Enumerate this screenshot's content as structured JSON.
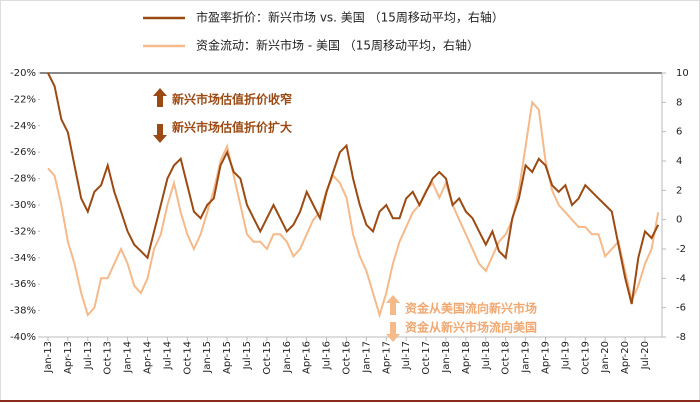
{
  "chart_data": {
    "type": "line",
    "annotations": [
      "新兴市场估值折价收窄",
      "新兴市场估值折价扩大",
      "资金从美国流向新兴市场",
      "资金从新兴市场流向美国"
    ],
    "categories": [
      "Jan-13",
      null,
      null,
      "Apr-13",
      null,
      null,
      "Jul-13",
      null,
      null,
      "Oct-13",
      null,
      null,
      "Jan-14",
      null,
      null,
      "Apr-14",
      null,
      null,
      "Jul-14",
      null,
      null,
      "Oct-14",
      null,
      null,
      "Jan-15",
      null,
      null,
      "Apr-15",
      null,
      null,
      "Jul-15",
      null,
      null,
      "Oct-15",
      null,
      null,
      "Jan-16",
      null,
      null,
      "Apr-16",
      null,
      null,
      "Jul-16",
      null,
      null,
      "Oct-16",
      null,
      null,
      "Jan-17",
      null,
      null,
      "Apr-17",
      null,
      null,
      "Jul-17",
      null,
      null,
      "Oct-17",
      null,
      null,
      "Jan-18",
      null,
      null,
      "Apr-18",
      null,
      null,
      "Jul-18",
      null,
      null,
      "Oct-18",
      null,
      null,
      "Jan-19",
      null,
      null,
      "Apr-19",
      null,
      null,
      "Jul-19",
      null,
      null,
      "Oct-19",
      null,
      null,
      "Jan-20",
      null,
      null,
      "Apr-20",
      null,
      null,
      "Jul-20",
      null,
      null
    ],
    "series": [
      {
        "name": "市盈率折价：新兴市场 vs. 美国 （15周移动平均，右轴）",
        "color": "#9c4a14",
        "axis": "y",
        "values": [
          -20,
          -21,
          -23.5,
          -24.5,
          -27,
          -29.5,
          -30.5,
          -29,
          -28.5,
          -27,
          -29,
          -30.5,
          -32,
          -33,
          -33.5,
          -34,
          -32,
          -30,
          -28,
          -27,
          -26.5,
          -28.5,
          -30.5,
          -31,
          -30,
          -29.5,
          -27,
          -26,
          -27.5,
          -28,
          -30,
          -31,
          -32,
          -31,
          -30,
          -31,
          -32,
          -31.5,
          -30.5,
          -29,
          -30,
          -31,
          -29,
          -27.5,
          -26,
          -25.5,
          -28,
          -30,
          -31.5,
          -32,
          -30.5,
          -30,
          -31,
          -31,
          -29.5,
          -29,
          -30,
          -29,
          -28,
          -27.5,
          -28,
          -30,
          -29.5,
          -30.5,
          -31,
          -32,
          -33,
          -32,
          -33.5,
          -34,
          -31,
          -29.5,
          -27,
          -27.5,
          -26.5,
          -27,
          -28.5,
          -29,
          -28.5,
          -30,
          -29.5,
          -28.5,
          -29,
          -29.5,
          -30,
          -30.5,
          -33,
          -35.5,
          -37.5,
          -34,
          -32,
          -32.5,
          -31.5
        ]
      },
      {
        "name": "资金流动：新兴市场 - 美国 （15周移动平均，右轴）",
        "color": "#f6b98a",
        "axis": "y2",
        "values": [
          3.5,
          3,
          1,
          -1.5,
          -3,
          -5,
          -6.5,
          -6,
          -4,
          -4,
          -3,
          -2,
          -3,
          -4.5,
          -5,
          -4,
          -2,
          -1,
          1,
          2.5,
          0.5,
          -1,
          -2,
          -1,
          0.5,
          2,
          4,
          5,
          3,
          1,
          -1,
          -1.5,
          -1.5,
          -2,
          -1,
          -1,
          -1.5,
          -2.5,
          -2,
          -1,
          0,
          0.5,
          2,
          3,
          2.5,
          1.5,
          -1,
          -2.5,
          -3.5,
          -5,
          -6.5,
          -5,
          -3,
          -1.5,
          -0.5,
          0.5,
          1,
          2,
          2.5,
          1.5,
          2.5,
          1,
          0,
          -1,
          -2,
          -3,
          -3.5,
          -2.5,
          -1.5,
          -1,
          0,
          2,
          5,
          8,
          7.5,
          4,
          2,
          1,
          0.5,
          0,
          -0.5,
          -0.5,
          -1,
          -1,
          -2.5,
          -2,
          -1.5,
          -3.5,
          -5.5,
          -4.5,
          -3,
          -2,
          0.5
        ]
      }
    ],
    "ylim": [
      -40,
      -20
    ],
    "yticks": [
      {
        "value": -40,
        "label": "-40%"
      },
      {
        "value": -38,
        "label": "-38%"
      },
      {
        "value": -36,
        "label": "-36%"
      },
      {
        "value": -34,
        "label": "-34%"
      },
      {
        "value": -32,
        "label": "-32%"
      },
      {
        "value": -30,
        "label": "-30%"
      },
      {
        "value": -28,
        "label": "-28%"
      },
      {
        "value": -26,
        "label": "-26%"
      },
      {
        "value": -24,
        "label": "-24%"
      },
      {
        "value": -22,
        "label": "-22%"
      },
      {
        "value": -20,
        "label": "-20%"
      }
    ],
    "y2lim": [
      -8,
      10
    ],
    "y2ticks": [
      -8,
      -6,
      -4,
      -2,
      0,
      2,
      4,
      6,
      8,
      10
    ]
  }
}
